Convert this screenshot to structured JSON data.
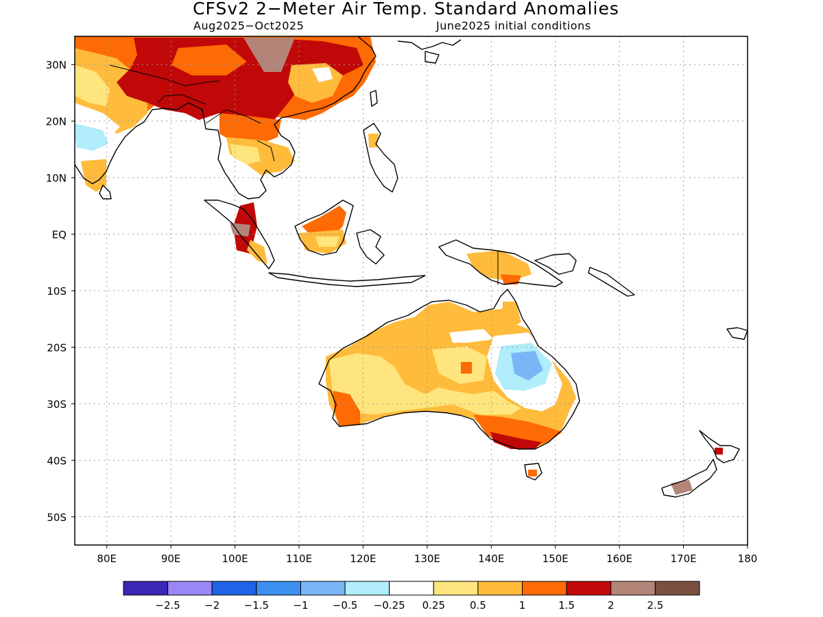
{
  "title": "CFSv2 2−Meter Air Temp. Standard Anomalies",
  "subtitle_left": "Aug2025−Oct2025",
  "subtitle_right": "June2025 initial conditions",
  "map": {
    "lon_range": [
      75,
      180
    ],
    "lat_range": [
      -55,
      35
    ],
    "lat_labels": [
      {
        "lat": 30,
        "label": "30N"
      },
      {
        "lat": 20,
        "label": "20N"
      },
      {
        "lat": 10,
        "label": "10N"
      },
      {
        "lat": 0,
        "label": "EQ"
      },
      {
        "lat": -10,
        "label": "10S"
      },
      {
        "lat": -20,
        "label": "20S"
      },
      {
        "lat": -30,
        "label": "30S"
      },
      {
        "lat": -40,
        "label": "40S"
      },
      {
        "lat": -50,
        "label": "50S"
      }
    ],
    "lon_labels": [
      {
        "lon": 80,
        "label": "80E"
      },
      {
        "lon": 90,
        "label": "90E"
      },
      {
        "lon": 100,
        "label": "100E"
      },
      {
        "lon": 110,
        "label": "110E"
      },
      {
        "lon": 120,
        "label": "120E"
      },
      {
        "lon": 130,
        "label": "130E"
      },
      {
        "lon": 140,
        "label": "140E"
      },
      {
        "lon": 150,
        "label": "150E"
      },
      {
        "lon": 160,
        "label": "160E"
      },
      {
        "lon": 170,
        "label": "170E"
      },
      {
        "lon": 180,
        "label": "180"
      }
    ]
  },
  "colorbar": {
    "colors": [
      "#3a27b5",
      "#9b86f5",
      "#1f63e6",
      "#3d8ff0",
      "#7ab6f7",
      "#b1edfa",
      "#ffffff",
      "#ffe57d",
      "#ffbb3c",
      "#fe6a03",
      "#c00808",
      "#b38578",
      "#7a5040"
    ],
    "labels": [
      "−2.5",
      "−2",
      "−1.5",
      "−1",
      "−0.5",
      "−0.25",
      "0.25",
      "0.5",
      "1",
      "1.5",
      "2",
      "2.5"
    ]
  }
}
